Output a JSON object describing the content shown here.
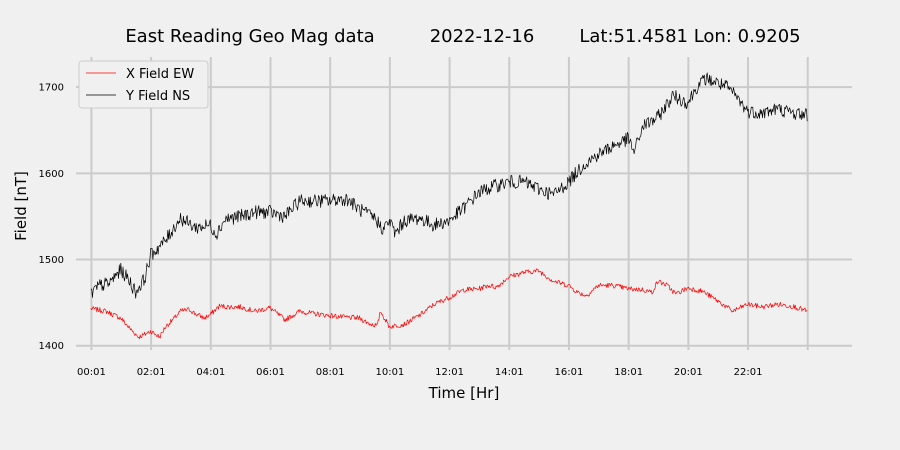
{
  "chart_data": {
    "type": "line",
    "title": {
      "name": "East Reading Geo Mag data",
      "date": "2022-12-16",
      "location": "Lat:51.4581  Lon: 0.9205"
    },
    "xlabel": "Time  [Hr]",
    "ylabel": "Field  [nT]",
    "x_unit": "hours",
    "xlim": [
      -0.5,
      25.5
    ],
    "ylim": [
      1395,
      1735
    ],
    "grid": true,
    "legend_position": "top-left",
    "x_ticks": [
      {
        "value": 0.0167,
        "label": "00:01"
      },
      {
        "value": 2.0167,
        "label": "02:01"
      },
      {
        "value": 4.0167,
        "label": "04:01"
      },
      {
        "value": 6.0167,
        "label": "06:01"
      },
      {
        "value": 8.0167,
        "label": "08:01"
      },
      {
        "value": 10.0167,
        "label": "10:01"
      },
      {
        "value": 12.0167,
        "label": "12:01"
      },
      {
        "value": 14.0167,
        "label": "14:01"
      },
      {
        "value": 16.0167,
        "label": "16:01"
      },
      {
        "value": 18.0167,
        "label": "18:01"
      },
      {
        "value": 20.0167,
        "label": "20:01"
      },
      {
        "value": 22.0167,
        "label": "22:01"
      },
      {
        "value": 24.0167,
        "label": ""
      }
    ],
    "y_ticks": [
      {
        "value": 1400,
        "label": "1400"
      },
      {
        "value": 1500,
        "label": "1500"
      },
      {
        "value": 1600,
        "label": "1600"
      },
      {
        "value": 1700,
        "label": "1700"
      }
    ],
    "series": [
      {
        "name": "X Field EW",
        "color": "#ff0000",
        "x": [
          0.0,
          0.5,
          1.0,
          1.3,
          1.6,
          1.8,
          2.0,
          2.3,
          2.5,
          2.8,
          3.0,
          3.3,
          3.5,
          3.8,
          4.0,
          4.3,
          4.6,
          5.0,
          5.5,
          6.0,
          6.5,
          7.0,
          7.5,
          8.0,
          8.5,
          9.0,
          9.3,
          9.6,
          9.7,
          10.0,
          10.5,
          11.0,
          11.5,
          12.0,
          12.5,
          13.0,
          13.3,
          13.6,
          13.8,
          14.0,
          14.5,
          15.0,
          15.5,
          16.0,
          16.3,
          16.6,
          17.0,
          17.5,
          18.0,
          18.5,
          18.8,
          19.0,
          19.3,
          19.6,
          20.0,
          20.5,
          21.0,
          21.5,
          22.0,
          22.5,
          23.0,
          23.5,
          24.0
        ],
        "y": [
          1443,
          1440,
          1432,
          1420,
          1410,
          1413,
          1417,
          1410,
          1422,
          1432,
          1440,
          1442,
          1437,
          1432,
          1436,
          1446,
          1445,
          1445,
          1440,
          1444,
          1430,
          1440,
          1437,
          1435,
          1433,
          1432,
          1426,
          1423,
          1440,
          1422,
          1425,
          1435,
          1448,
          1456,
          1465,
          1466,
          1470,
          1468,
          1474,
          1480,
          1485,
          1487,
          1475,
          1470,
          1462,
          1458,
          1470,
          1470,
          1466,
          1465,
          1462,
          1475,
          1470,
          1460,
          1467,
          1463,
          1452,
          1440,
          1448,
          1445,
          1448,
          1446,
          1440
        ]
      },
      {
        "name": "Y Field NS",
        "color": "#000000",
        "x": [
          0.0,
          0.3,
          0.6,
          1.0,
          1.3,
          1.5,
          1.8,
          2.0,
          2.5,
          2.8,
          3.0,
          3.5,
          4.0,
          4.2,
          4.5,
          5.0,
          5.5,
          6.0,
          6.5,
          7.0,
          7.5,
          8.0,
          8.3,
          8.6,
          9.0,
          9.5,
          9.8,
          10.0,
          10.2,
          10.5,
          11.0,
          11.5,
          12.0,
          12.5,
          13.0,
          13.5,
          14.0,
          14.5,
          15.0,
          15.5,
          16.0,
          16.5,
          17.0,
          17.5,
          18.0,
          18.2,
          18.5,
          19.0,
          19.5,
          20.0,
          20.3,
          20.6,
          21.0,
          21.3,
          21.6,
          22.0,
          22.5,
          23.0,
          23.5,
          24.0
        ],
        "y": [
          1460,
          1470,
          1472,
          1488,
          1475,
          1462,
          1478,
          1505,
          1522,
          1538,
          1548,
          1537,
          1540,
          1530,
          1547,
          1550,
          1555,
          1555,
          1550,
          1568,
          1568,
          1568,
          1570,
          1570,
          1558,
          1548,
          1535,
          1545,
          1530,
          1545,
          1548,
          1540,
          1545,
          1560,
          1578,
          1585,
          1590,
          1590,
          1582,
          1575,
          1590,
          1610,
          1622,
          1632,
          1640,
          1625,
          1655,
          1665,
          1690,
          1682,
          1700,
          1710,
          1705,
          1700,
          1690,
          1672,
          1670,
          1675,
          1670,
          1668
        ]
      }
    ]
  }
}
